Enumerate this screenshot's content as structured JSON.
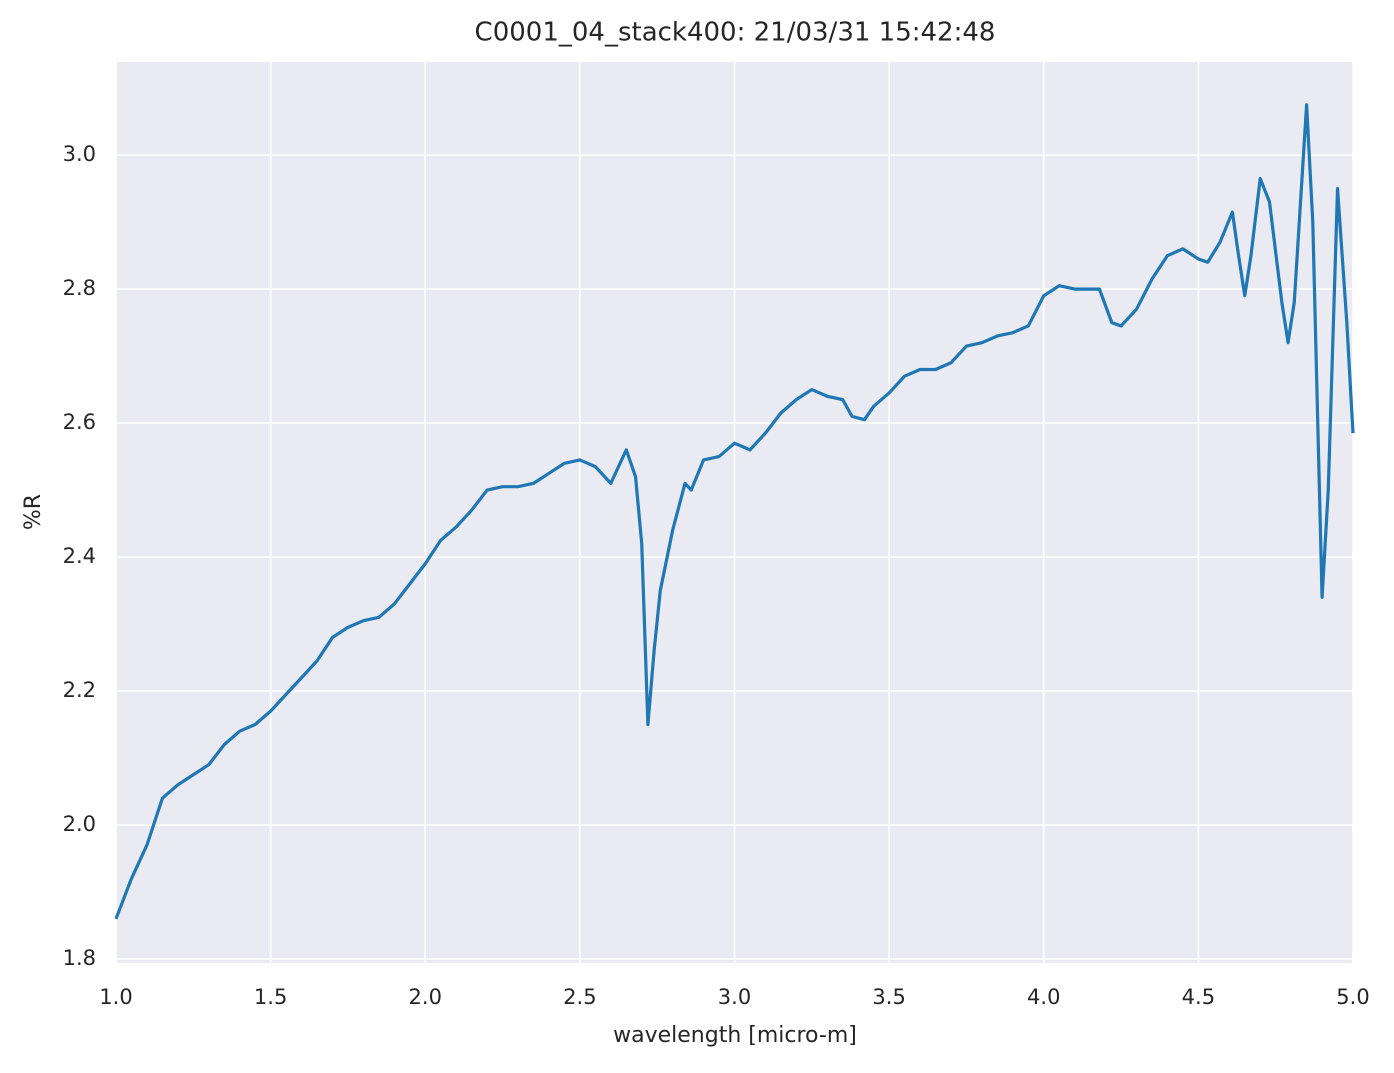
{
  "chart_data": {
    "type": "line",
    "title": "C0001_04_stack400:  21/03/31 15:42:48",
    "x_label": "wavelength [micro-m]",
    "y_label": "%R",
    "xlim": [
      1.0,
      5.0
    ],
    "ylim": [
      1.794,
      3.139
    ],
    "xticks": [
      {
        "value": 1.0,
        "label": "1.0"
      },
      1.5,
      {
        "value": 2.0,
        "label": "2.0"
      },
      2.5,
      {
        "value": 3.0,
        "label": "3.0"
      },
      3.5,
      {
        "value": 4.0,
        "label": "4.0"
      },
      4.5,
      {
        "value": 5.0,
        "label": "5.0"
      }
    ],
    "yticks": [
      1.8,
      {
        "value": 2.0,
        "label": "2.0"
      },
      2.2,
      2.4,
      2.6,
      2.8,
      {
        "value": 3.0,
        "label": "3.0"
      }
    ],
    "grid": true,
    "x": [
      1.0,
      1.05,
      1.1,
      1.15,
      1.2,
      1.25,
      1.3,
      1.35,
      1.4,
      1.45,
      1.5,
      1.55,
      1.6,
      1.65,
      1.7,
      1.75,
      1.8,
      1.85,
      1.9,
      1.95,
      2.0,
      2.05,
      2.1,
      2.15,
      2.2,
      2.25,
      2.3,
      2.35,
      2.4,
      2.45,
      2.5,
      2.55,
      2.6,
      2.65,
      2.68,
      2.7,
      2.72,
      2.74,
      2.76,
      2.8,
      2.84,
      2.86,
      2.9,
      2.95,
      3.0,
      3.05,
      3.1,
      3.15,
      3.2,
      3.25,
      3.3,
      3.35,
      3.38,
      3.42,
      3.45,
      3.5,
      3.55,
      3.6,
      3.65,
      3.7,
      3.75,
      3.8,
      3.85,
      3.9,
      3.95,
      4.0,
      4.05,
      4.1,
      4.18,
      4.22,
      4.25,
      4.3,
      4.35,
      4.4,
      4.45,
      4.5,
      4.53,
      4.57,
      4.61,
      4.63,
      4.65,
      4.67,
      4.7,
      4.73,
      4.77,
      4.79,
      4.81,
      4.85,
      4.87,
      4.9,
      4.92,
      4.95,
      4.98,
      5.0
    ],
    "series": [
      {
        "color": "#1f77b4",
        "values": [
          1.86,
          1.92,
          1.97,
          2.04,
          2.06,
          2.075,
          2.09,
          2.12,
          2.14,
          2.15,
          2.17,
          2.195,
          2.22,
          2.245,
          2.28,
          2.295,
          2.305,
          2.31,
          2.33,
          2.36,
          2.39,
          2.425,
          2.445,
          2.47,
          2.5,
          2.505,
          2.505,
          2.51,
          2.525,
          2.54,
          2.545,
          2.535,
          2.51,
          2.56,
          2.52,
          2.42,
          2.15,
          2.26,
          2.35,
          2.44,
          2.51,
          2.5,
          2.545,
          2.55,
          2.57,
          2.56,
          2.585,
          2.615,
          2.635,
          2.65,
          2.64,
          2.635,
          2.61,
          2.605,
          2.625,
          2.645,
          2.67,
          2.68,
          2.68,
          2.69,
          2.715,
          2.72,
          2.73,
          2.735,
          2.745,
          2.79,
          2.805,
          2.8,
          2.8,
          2.75,
          2.745,
          2.77,
          2.815,
          2.85,
          2.86,
          2.845,
          2.84,
          2.87,
          2.915,
          2.85,
          2.79,
          2.85,
          2.965,
          2.93,
          2.78,
          2.72,
          2.78,
          3.075,
          2.9,
          2.34,
          2.5,
          2.95,
          2.75,
          2.585
        ]
      }
    ]
  }
}
